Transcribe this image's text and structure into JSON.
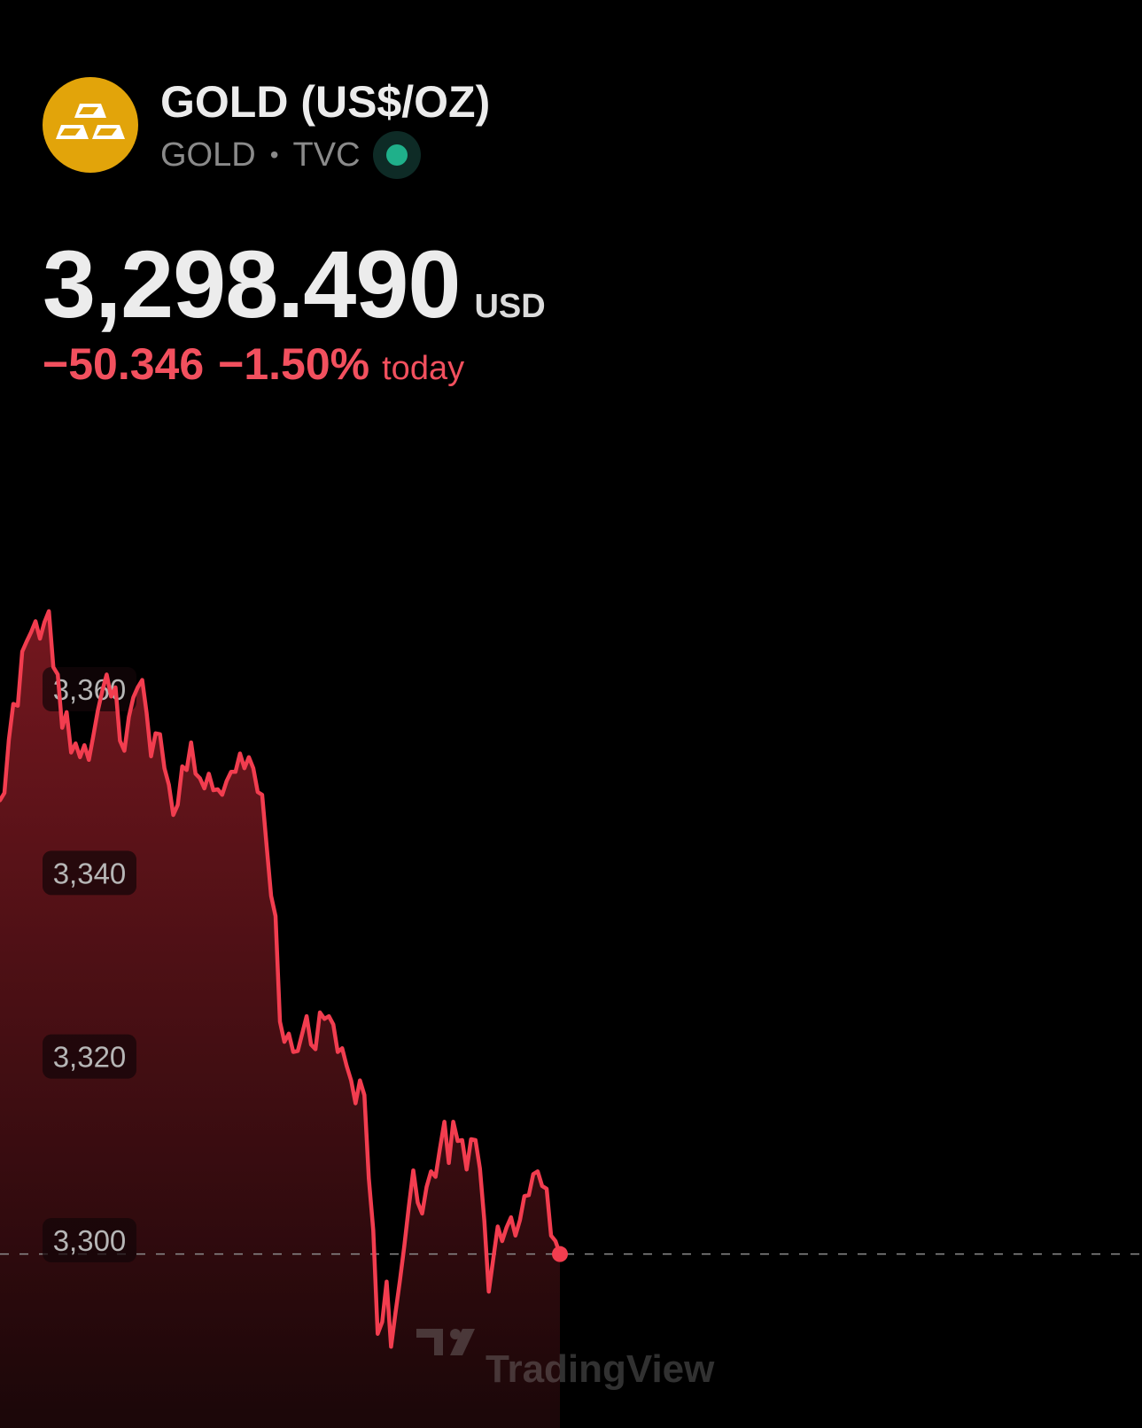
{
  "symbol": {
    "name": "GOLD (US$/OZ)",
    "ticker": "GOLD",
    "exchange": "TVC",
    "separator": "•",
    "icon": "gold-bars-icon",
    "market_status": "market-open",
    "logo_color": "#e2a40a"
  },
  "quote": {
    "price": "3,298.490",
    "currency": "USD",
    "change_abs": "−50.346",
    "change_pct": "−1.50%",
    "period": "today"
  },
  "colors": {
    "negative": "#f2505e",
    "line": "#f23d4f",
    "status_dot": "#1fb08a"
  },
  "watermark": "TradingView",
  "chart_data": {
    "type": "area",
    "y_ticks": [
      "3,360",
      "3,340",
      "3,320",
      "3,300"
    ],
    "y_tick_values": [
      3360,
      3340,
      3320,
      3300
    ],
    "reference_value": 3298.49,
    "ylim": [
      3278,
      3380
    ],
    "points": [
      [
        0,
        3347.9
      ],
      [
        1,
        3348.7
      ],
      [
        2,
        3354.5
      ],
      [
        3,
        3358.4
      ],
      [
        4,
        3358.2
      ],
      [
        5,
        3364.1
      ],
      [
        6,
        3365.2
      ],
      [
        7,
        3366.2
      ],
      [
        8,
        3367.4
      ],
      [
        9,
        3365.5
      ],
      [
        10,
        3367.3
      ],
      [
        11,
        3368.5
      ],
      [
        12,
        3362.4
      ],
      [
        13,
        3361.6
      ],
      [
        14,
        3355.8
      ],
      [
        15,
        3357.5
      ],
      [
        16,
        3353.1
      ],
      [
        17,
        3354.1
      ],
      [
        18,
        3352.6
      ],
      [
        19,
        3353.9
      ],
      [
        20,
        3352.3
      ],
      [
        21,
        3354.9
      ],
      [
        22,
        3357.6
      ],
      [
        23,
        3359.8
      ],
      [
        24,
        3361.6
      ],
      [
        25,
        3359.2
      ],
      [
        26,
        3360.2
      ],
      [
        27,
        3354.4
      ],
      [
        28,
        3353.3
      ],
      [
        29,
        3357.0
      ],
      [
        30,
        3359.1
      ],
      [
        31,
        3360.2
      ],
      [
        32,
        3361.0
      ],
      [
        33,
        3357.4
      ],
      [
        34,
        3352.7
      ],
      [
        35,
        3355.2
      ],
      [
        36,
        3355.1
      ],
      [
        37,
        3351.4
      ],
      [
        38,
        3349.6
      ],
      [
        39,
        3346.3
      ],
      [
        40,
        3347.4
      ],
      [
        41,
        3351.6
      ],
      [
        42,
        3351.2
      ],
      [
        43,
        3354.2
      ],
      [
        44,
        3350.8
      ],
      [
        45,
        3350.3
      ],
      [
        46,
        3349.2
      ],
      [
        47,
        3350.8
      ],
      [
        48,
        3349.0
      ],
      [
        49,
        3349.1
      ],
      [
        50,
        3348.5
      ],
      [
        51,
        3350.0
      ],
      [
        52,
        3351.0
      ],
      [
        53,
        3351.0
      ],
      [
        54,
        3353.0
      ],
      [
        55,
        3351.4
      ],
      [
        56,
        3352.6
      ],
      [
        57,
        3351.4
      ],
      [
        58,
        3348.8
      ],
      [
        59,
        3348.5
      ],
      [
        60,
        3342.9
      ],
      [
        61,
        3337.5
      ],
      [
        62,
        3335.3
      ],
      [
        63,
        3323.8
      ],
      [
        64,
        3321.6
      ],
      [
        65,
        3322.5
      ],
      [
        66,
        3320.5
      ],
      [
        67,
        3320.6
      ],
      [
        68,
        3322.5
      ],
      [
        69,
        3324.4
      ],
      [
        70,
        3321.3
      ],
      [
        71,
        3320.8
      ],
      [
        72,
        3324.8
      ],
      [
        73,
        3324.1
      ],
      [
        74,
        3324.4
      ],
      [
        75,
        3323.5
      ],
      [
        76,
        3320.5
      ],
      [
        77,
        3320.9
      ],
      [
        78,
        3319.0
      ],
      [
        79,
        3317.4
      ],
      [
        80,
        3314.9
      ],
      [
        81,
        3317.4
      ],
      [
        82,
        3315.8
      ],
      [
        83,
        3306.7
      ],
      [
        84,
        3301.1
      ],
      [
        85,
        3289.8
      ],
      [
        86,
        3291.1
      ],
      [
        87,
        3295.5
      ],
      [
        88,
        3288.4
      ],
      [
        89,
        3292.1
      ],
      [
        90,
        3295.6
      ],
      [
        91,
        3299.4
      ],
      [
        92,
        3303.7
      ],
      [
        93,
        3307.6
      ],
      [
        94,
        3304.1
      ],
      [
        95,
        3302.9
      ],
      [
        96,
        3305.8
      ],
      [
        97,
        3307.5
      ],
      [
        98,
        3306.9
      ],
      [
        99,
        3310.0
      ],
      [
        100,
        3312.9
      ],
      [
        101,
        3308.4
      ],
      [
        102,
        3312.9
      ],
      [
        103,
        3310.8
      ],
      [
        104,
        3310.9
      ],
      [
        105,
        3307.7
      ],
      [
        106,
        3311.0
      ],
      [
        107,
        3310.9
      ],
      [
        108,
        3307.8
      ],
      [
        109,
        3302.1
      ],
      [
        110,
        3294.4
      ],
      [
        111,
        3298.0
      ],
      [
        112,
        3301.5
      ],
      [
        113,
        3299.9
      ],
      [
        114,
        3301.4
      ],
      [
        115,
        3302.5
      ],
      [
        116,
        3300.5
      ],
      [
        117,
        3302.2
      ],
      [
        118,
        3304.8
      ],
      [
        119,
        3304.9
      ],
      [
        120,
        3307.2
      ],
      [
        121,
        3307.5
      ],
      [
        122,
        3305.9
      ],
      [
        123,
        3305.6
      ],
      [
        124,
        3300.5
      ],
      [
        125,
        3299.9
      ],
      [
        126,
        3298.49
      ]
    ]
  }
}
